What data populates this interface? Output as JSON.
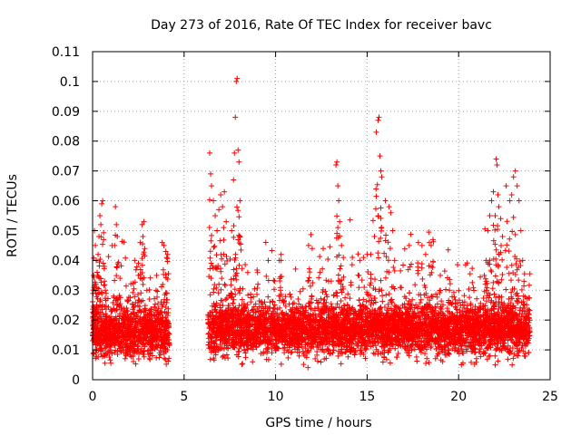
{
  "chart_data": {
    "type": "scatter",
    "title": "Day 273 of 2016, Rate Of TEC Index for receiver bavc",
    "xlabel": "GPS time / hours",
    "ylabel": "ROTI / TECUs",
    "xlim": [
      0,
      25
    ],
    "ylim": [
      0,
      0.11
    ],
    "x_ticks": [
      {
        "value": 0,
        "label": "0"
      },
      {
        "value": 5,
        "label": "5"
      },
      {
        "value": 10,
        "label": "10"
      },
      {
        "value": 15,
        "label": "15"
      },
      {
        "value": 20,
        "label": "20"
      },
      {
        "value": 25,
        "label": "25"
      }
    ],
    "y_ticks": [
      {
        "value": 0,
        "label": "0"
      },
      {
        "value": 0.01,
        "label": "0.01"
      },
      {
        "value": 0.02,
        "label": "0.02"
      },
      {
        "value": 0.03,
        "label": "0.03"
      },
      {
        "value": 0.04,
        "label": "0.04"
      },
      {
        "value": 0.05,
        "label": "0.05"
      },
      {
        "value": 0.06,
        "label": "0.06"
      },
      {
        "value": 0.07,
        "label": "0.07"
      },
      {
        "value": 0.08,
        "label": "0.08"
      },
      {
        "value": 0.09,
        "label": "0.09"
      },
      {
        "value": 0.1,
        "label": "0.1"
      },
      {
        "value": 0.11,
        "label": "0.11"
      }
    ],
    "grid": true,
    "marker": "+",
    "color": "#ff0000",
    "series": [
      {
        "name": "ROTI",
        "segments": [
          {
            "start": 0.0,
            "end": 4.2,
            "mean": 0.016,
            "spread": 0.007,
            "min": 0.005
          },
          {
            "start": 6.3,
            "end": 23.9,
            "mean": 0.017,
            "spread": 0.007,
            "min": 0.004
          }
        ],
        "x": [
          0.05,
          0.1,
          0.15,
          0.2,
          0.25,
          0.3,
          0.35,
          0.4,
          0.45,
          0.5,
          0.55,
          0.6,
          0.65,
          0.7,
          1.2,
          1.25,
          1.3,
          1.35,
          1.5,
          2.3,
          2.5,
          2.6,
          2.7,
          2.75,
          2.8,
          2.85,
          3.5,
          3.8,
          3.9,
          4.0,
          4.05,
          4.1,
          6.4,
          6.45,
          6.5,
          6.6,
          6.7,
          6.8,
          6.9,
          7.0,
          7.1,
          7.2,
          7.3,
          7.6,
          7.7,
          7.75,
          7.8,
          7.85,
          7.9,
          7.95,
          8.0,
          8.05,
          10.2,
          10.3,
          11.8,
          12.0,
          12.6,
          13.3,
          13.35,
          13.4,
          13.45,
          13.5,
          13.6,
          13.7,
          14.6,
          14.8,
          15.0,
          15.2,
          15.4,
          15.5,
          15.6,
          15.65,
          15.7,
          15.75,
          15.8,
          16.0,
          16.2,
          16.3,
          16.4,
          16.5,
          17.3,
          17.8,
          18.0,
          18.2,
          18.4,
          18.5,
          18.6,
          19.0,
          19.5,
          21.4,
          21.5,
          21.6,
          21.7,
          21.8,
          21.9,
          22.0,
          22.05,
          22.1,
          22.15,
          22.2,
          22.3,
          22.4,
          22.6,
          22.8,
          22.9,
          23.0,
          23.1,
          23.2,
          23.3,
          23.4,
          23.5
        ],
        "y": [
          0.035,
          0.05,
          0.045,
          0.04,
          0.036,
          0.042,
          0.048,
          0.055,
          0.052,
          0.059,
          0.06,
          0.047,
          0.038,
          0.03,
          0.045,
          0.058,
          0.052,
          0.048,
          0.034,
          0.04,
          0.035,
          0.046,
          0.052,
          0.048,
          0.053,
          0.044,
          0.035,
          0.046,
          0.045,
          0.043,
          0.041,
          0.042,
          0.076,
          0.069,
          0.065,
          0.06,
          0.055,
          0.05,
          0.057,
          0.062,
          0.058,
          0.063,
          0.053,
          0.05,
          0.067,
          0.076,
          0.088,
          0.1,
          0.101,
          0.077,
          0.073,
          0.06,
          0.04,
          0.042,
          0.045,
          0.044,
          0.044,
          0.072,
          0.073,
          0.065,
          0.06,
          0.053,
          0.045,
          0.041,
          0.04,
          0.041,
          0.042,
          0.042,
          0.048,
          0.083,
          0.087,
          0.088,
          0.075,
          0.07,
          0.068,
          0.06,
          0.058,
          0.056,
          0.05,
          0.04,
          0.045,
          0.046,
          0.045,
          0.042,
          0.046,
          0.045,
          0.047,
          0.035,
          0.03,
          0.035,
          0.04,
          0.05,
          0.055,
          0.06,
          0.063,
          0.055,
          0.074,
          0.072,
          0.062,
          0.058,
          0.054,
          0.048,
          0.065,
          0.06,
          0.062,
          0.068,
          0.07,
          0.065,
          0.06,
          0.05,
          0.04
        ]
      }
    ]
  }
}
